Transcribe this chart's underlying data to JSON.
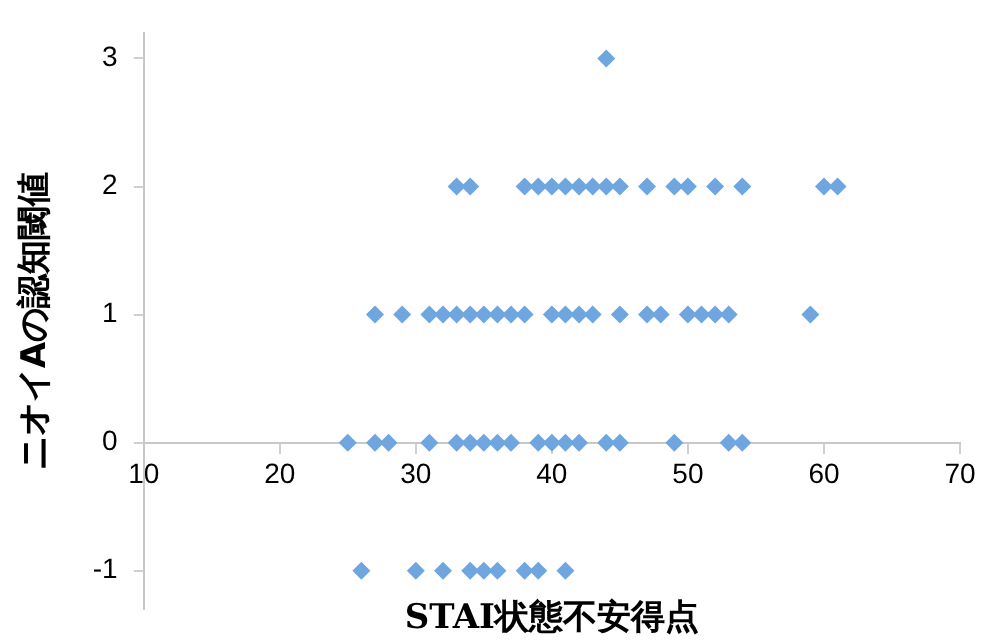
{
  "chart_data": {
    "type": "scatter",
    "xlabel": "STAI状態不安得点",
    "ylabel": "ニオイAの認知閾値",
    "xlim": [
      10,
      70
    ],
    "xticks": [
      10,
      20,
      30,
      40,
      50,
      60,
      70
    ],
    "ylim": [
      -1.3,
      3.2
    ],
    "yticks": [
      -1,
      0,
      1,
      2,
      3
    ],
    "grid": false,
    "legend": false,
    "marker": "diamond",
    "series": [
      {
        "color": "#6fa6e0",
        "x": [
          25,
          27,
          28,
          31,
          33,
          34,
          35,
          36,
          37,
          39,
          40,
          41,
          42,
          44,
          45,
          49,
          53,
          54,
          26,
          30,
          32,
          34,
          35,
          36,
          38,
          39,
          41,
          27,
          29,
          31,
          32,
          33,
          34,
          35,
          36,
          37,
          38,
          40,
          41,
          42,
          43,
          45,
          47,
          48,
          50,
          51,
          52,
          53,
          59,
          33,
          34,
          38,
          39,
          40,
          41,
          42,
          43,
          44,
          45,
          47,
          49,
          50,
          52,
          54,
          60,
          61,
          44
        ],
        "values": [
          0,
          0,
          0,
          0,
          0,
          0,
          0,
          0,
          0,
          0,
          0,
          0,
          0,
          0,
          0,
          0,
          0,
          0,
          -1,
          -1,
          -1,
          -1,
          -1,
          -1,
          -1,
          -1,
          -1,
          1,
          1,
          1,
          1,
          1,
          1,
          1,
          1,
          1,
          1,
          1,
          1,
          1,
          1,
          1,
          1,
          1,
          1,
          1,
          1,
          1,
          1,
          2,
          2,
          2,
          2,
          2,
          2,
          2,
          2,
          2,
          2,
          2,
          2,
          2,
          2,
          2,
          2,
          2,
          3
        ]
      }
    ]
  }
}
